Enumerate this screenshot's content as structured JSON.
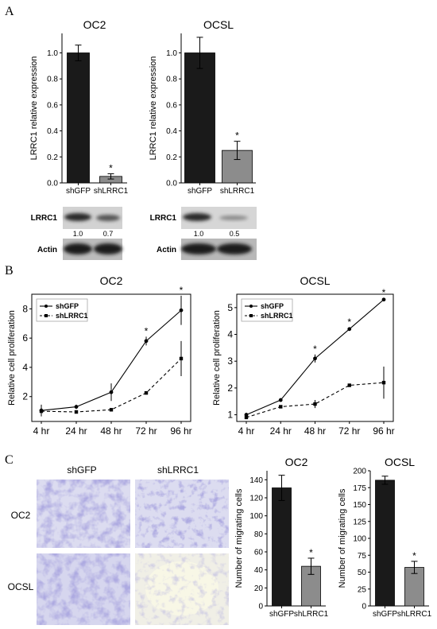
{
  "panels": {
    "a": "A",
    "b": "B",
    "c": "C"
  },
  "colors": {
    "black_bar": "#1a1a1a",
    "gray_bar": "#8c8c8c",
    "stain": "#8a86c4"
  },
  "chart_data": [
    {
      "id": "A1",
      "type": "bar",
      "title": "OC2",
      "ylabel": "LRRC1 relative expression",
      "xlabel": "",
      "categories": [
        "shGFP",
        "shLRRC1"
      ],
      "values": [
        1.0,
        0.05
      ],
      "errors": [
        0.06,
        0.02
      ],
      "ylim": [
        0,
        1.15
      ],
      "yticks": [
        "0.0",
        "0.2",
        "0.4",
        "0.6",
        "0.8",
        "1.0"
      ],
      "significance": [
        "",
        "*"
      ]
    },
    {
      "id": "A2",
      "type": "bar",
      "title": "OCSL",
      "ylabel": "LRRC1 relative expression",
      "xlabel": "",
      "categories": [
        "shGFP",
        "shLRRC1"
      ],
      "values": [
        1.0,
        0.25
      ],
      "errors": [
        0.12,
        0.07
      ],
      "ylim": [
        0,
        1.15
      ],
      "yticks": [
        "0.0",
        "0.2",
        "0.4",
        "0.6",
        "0.8",
        "1.0"
      ],
      "significance": [
        "",
        "*"
      ]
    },
    {
      "id": "B1",
      "type": "line",
      "title": "OC2",
      "ylabel": "Relative cell proliferation",
      "xlabel": "",
      "categories": [
        "4 hr",
        "24 hr",
        "48 hr",
        "72 hr",
        "96 hr"
      ],
      "series": [
        {
          "name": "shGFP",
          "values": [
            1.05,
            1.3,
            2.3,
            5.8,
            7.9
          ],
          "errors": [
            0.4,
            0.15,
            0.6,
            0.3,
            1.0
          ]
        },
        {
          "name": "shLRRC1",
          "values": [
            1.0,
            0.95,
            1.1,
            2.25,
            4.6
          ],
          "errors": [
            0.1,
            0.1,
            0.1,
            0.1,
            1.2
          ]
        }
      ],
      "ylim": [
        0.3,
        9
      ],
      "yticks": [
        "2",
        "4",
        "6",
        "8"
      ],
      "significance": [
        "",
        "",
        "",
        "*",
        "*"
      ],
      "legend": "top-left"
    },
    {
      "id": "B2",
      "type": "line",
      "title": "OCSL",
      "ylabel": "Relative cell proliferation",
      "xlabel": "",
      "categories": [
        "4 hr",
        "24 hr",
        "48 hr",
        "72 hr",
        "96 hr"
      ],
      "series": [
        {
          "name": "shGFP",
          "values": [
            1.0,
            1.55,
            3.1,
            4.2,
            5.3
          ],
          "errors": [
            0.05,
            0.05,
            0.15,
            0.05,
            0.05
          ]
        },
        {
          "name": "shLRRC1",
          "values": [
            0.9,
            1.3,
            1.4,
            2.1,
            2.2
          ],
          "errors": [
            0.05,
            0.05,
            0.15,
            0.05,
            0.6
          ]
        }
      ],
      "ylim": [
        0.75,
        5.5
      ],
      "yticks": [
        "1",
        "2",
        "3",
        "4",
        "5"
      ],
      "significance": [
        "",
        "",
        "*",
        "*",
        "*"
      ],
      "legend": "top-left"
    },
    {
      "id": "C1",
      "type": "bar",
      "title": "OC2",
      "ylabel": "Number of migrating cells",
      "xlabel": "",
      "categories": [
        "shGFP",
        "shLRRC1"
      ],
      "values": [
        131,
        44
      ],
      "errors": [
        14,
        9
      ],
      "ylim": [
        0,
        150
      ],
      "yticks": [
        "0",
        "20",
        "40",
        "60",
        "80",
        "100",
        "120",
        "140"
      ],
      "significance": [
        "",
        "*"
      ]
    },
    {
      "id": "C2",
      "type": "bar",
      "title": "OCSL",
      "ylabel": "Number of migrating cells",
      "xlabel": "",
      "categories": [
        "shGFP",
        "shLRRC1"
      ],
      "values": [
        186,
        57
      ],
      "errors": [
        6,
        9
      ],
      "ylim": [
        0,
        200
      ],
      "yticks": [
        "0",
        "25",
        "50",
        "75",
        "100",
        "125",
        "150",
        "175",
        "200"
      ],
      "significance": [
        "",
        "*"
      ]
    }
  ],
  "blots": [
    {
      "target": "LRRC1",
      "values": [
        "1.0",
        "0.7"
      ],
      "loading": "Actin"
    },
    {
      "target": "LRRC1",
      "values": [
        "1.0",
        "0.5"
      ],
      "loading": "Actin"
    }
  ],
  "micrographs": {
    "columns": [
      "shGFP",
      "shLRRC1"
    ],
    "rows": [
      "OC2",
      "OCSL"
    ]
  }
}
